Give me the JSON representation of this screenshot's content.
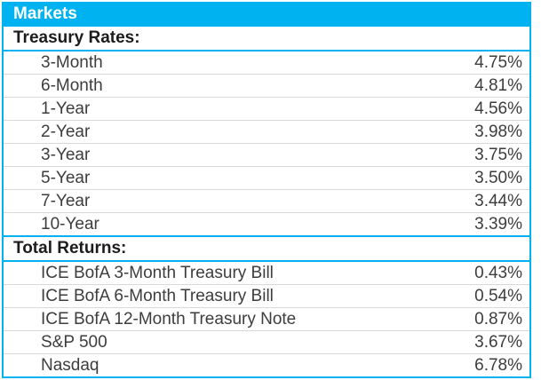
{
  "title": "Markets",
  "colors": {
    "accent": "#00B3F0",
    "title_text": "#FFFFFF",
    "section_text": "#1C1C1C",
    "row_text": "#3D3D3D",
    "row_separator": "#D9D9D9"
  },
  "sections": [
    {
      "label": "Treasury Rates:",
      "rows": [
        {
          "label": "3-Month",
          "value": "4.75%"
        },
        {
          "label": "6-Month",
          "value": "4.81%"
        },
        {
          "label": "1-Year",
          "value": "4.56%"
        },
        {
          "label": "2-Year",
          "value": "3.98%"
        },
        {
          "label": "3-Year",
          "value": "3.75%"
        },
        {
          "label": "5-Year",
          "value": "3.50%"
        },
        {
          "label": "7-Year",
          "value": "3.44%"
        },
        {
          "label": "10-Year",
          "value": "3.39%"
        }
      ]
    },
    {
      "label": "Total Returns:",
      "rows": [
        {
          "label": "ICE BofA 3-Month Treasury Bill",
          "value": "0.43%"
        },
        {
          "label": "ICE BofA 6-Month Treasury Bill",
          "value": "0.54%"
        },
        {
          "label": "ICE BofA 12-Month Treasury Note",
          "value": "0.87%"
        },
        {
          "label": "S&P 500",
          "value": "3.67%"
        },
        {
          "label": "Nasdaq",
          "value": "6.78%"
        }
      ]
    }
  ]
}
